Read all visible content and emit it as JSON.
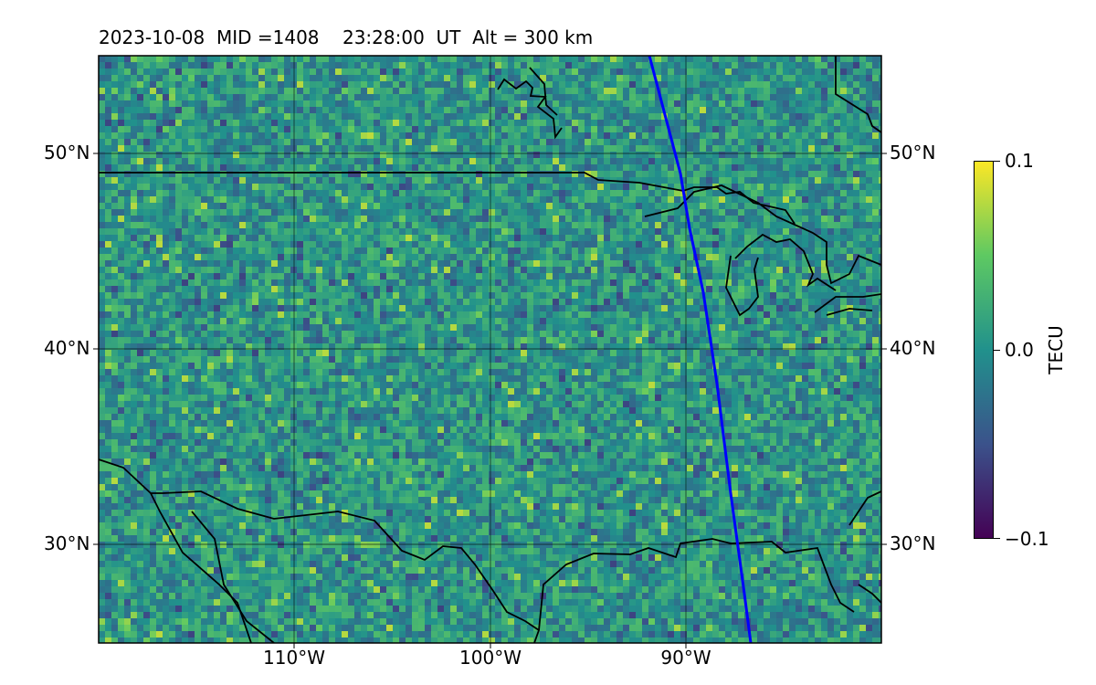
{
  "header": {
    "date": "2023-10-08",
    "mid": "MID =1408",
    "time": "23:28:00  UT",
    "alt": "Alt = 300 km"
  },
  "map": {
    "projection": "lat-lon grid",
    "extent": {
      "lon_min": -120,
      "lon_max": -80,
      "lat_min": 25,
      "lat_max": 55
    },
    "lat_labels": [
      "50°N",
      "40°N",
      "30°N"
    ],
    "lon_labels": [
      "110°W",
      "100°W",
      "90°W"
    ],
    "gridlines": true,
    "orbit_track_color": "#0000ff",
    "coastline_color": "#000000"
  },
  "colorbar": {
    "label": "TECU",
    "ticks": [
      "0.1",
      "0.0",
      "−0.1"
    ],
    "vmin": -0.1,
    "vmax": 0.1,
    "colormap": [
      "#440154",
      "#3b528b",
      "#21918c",
      "#5ec962",
      "#fde725"
    ]
  }
}
